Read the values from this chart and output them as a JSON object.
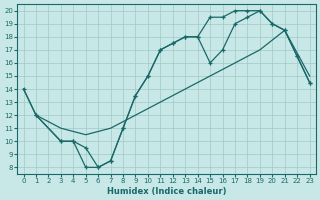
{
  "xlabel": "Humidex (Indice chaleur)",
  "bg_color": "#c8e8e8",
  "line_color": "#1a6868",
  "xlim": [
    -0.5,
    23.5
  ],
  "ylim": [
    7.5,
    20.5
  ],
  "xticks": [
    0,
    1,
    2,
    3,
    4,
    5,
    6,
    7,
    8,
    9,
    10,
    11,
    12,
    13,
    14,
    15,
    16,
    17,
    18,
    19,
    20,
    21,
    22,
    23
  ],
  "yticks": [
    8,
    9,
    10,
    11,
    12,
    13,
    14,
    15,
    16,
    17,
    18,
    19,
    20
  ],
  "line1_x": [
    0,
    1,
    3,
    4,
    5,
    6,
    7,
    8,
    9,
    10,
    11,
    12,
    13,
    14,
    15,
    16,
    17,
    18,
    19,
    20,
    21,
    22,
    23
  ],
  "line1_y": [
    14,
    12,
    10,
    10,
    8,
    8,
    8.5,
    11,
    13.5,
    15,
    17,
    17.5,
    18,
    18,
    19.5,
    19.5,
    20,
    20,
    20,
    19,
    18.5,
    16.5,
    14.5
  ],
  "line2_x": [
    1,
    3,
    4,
    5,
    6,
    7,
    8,
    9,
    10,
    11,
    12,
    13,
    14,
    15,
    16,
    17,
    18,
    19,
    20,
    21,
    22,
    23
  ],
  "line2_y": [
    12,
    10,
    10,
    9.5,
    8,
    8.5,
    11,
    13.5,
    15,
    17,
    17.5,
    18,
    18,
    16,
    17,
    19,
    19.5,
    20,
    19,
    18.5,
    16.5,
    14.5
  ],
  "line3_x": [
    0,
    1,
    3,
    5,
    7,
    9,
    11,
    13,
    15,
    17,
    19,
    21,
    23
  ],
  "line3_y": [
    14,
    12,
    11,
    10.5,
    11,
    12,
    13,
    14,
    15,
    16,
    17,
    18.5,
    15
  ]
}
